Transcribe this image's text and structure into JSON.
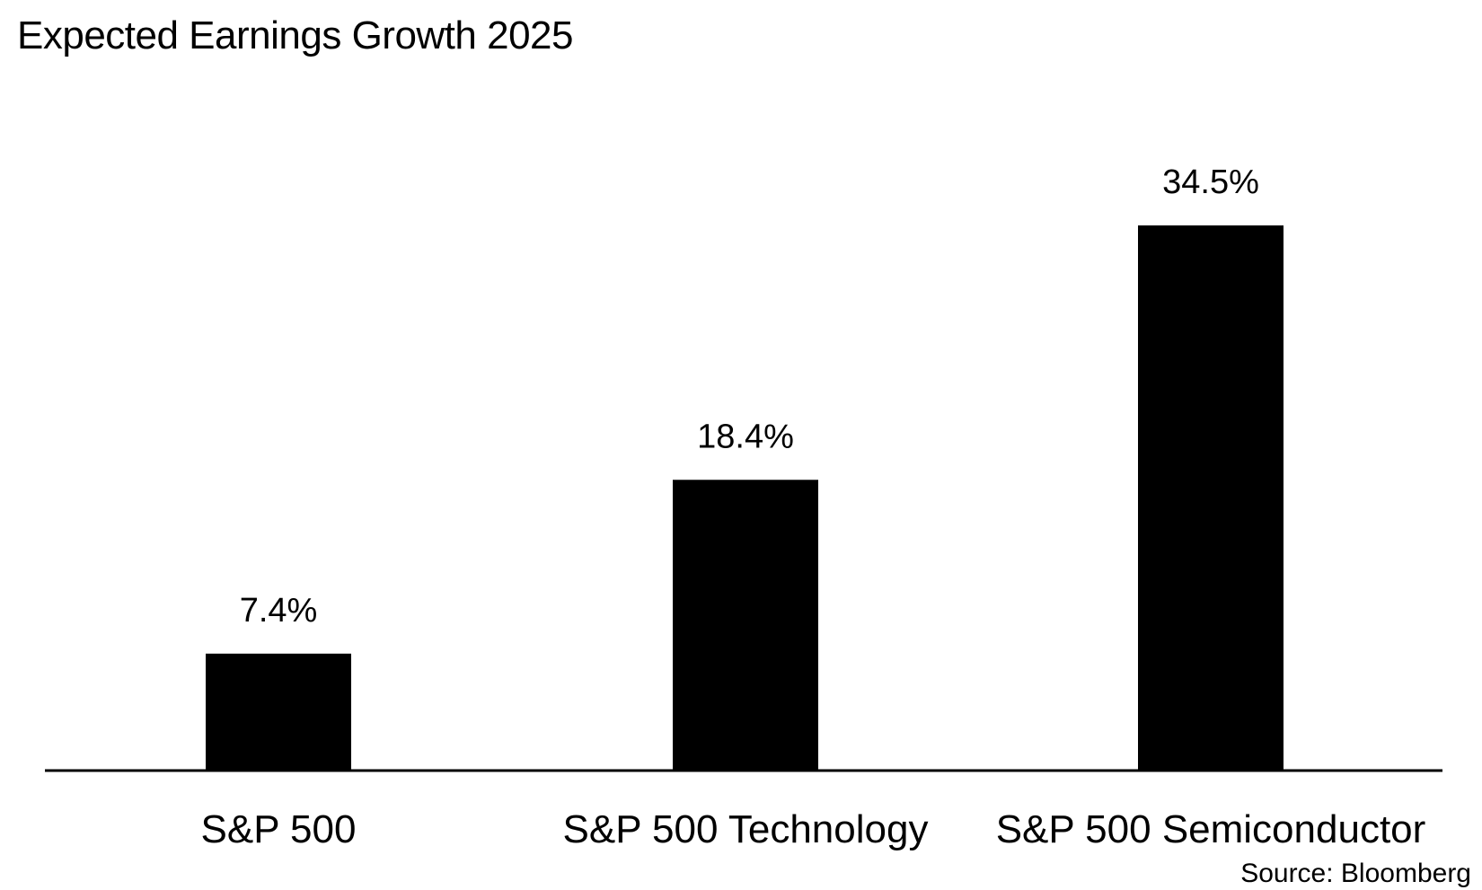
{
  "title": "Expected Earnings Growth 2025",
  "source": "Source: Bloomberg",
  "chart_data": {
    "type": "bar",
    "title": "Expected Earnings Growth 2025",
    "categories": [
      "S&P 500",
      "S&P 500 Technology",
      "S&P 500 Semiconductor"
    ],
    "values": [
      7.4,
      18.4,
      34.5
    ],
    "value_labels": [
      "7.4%",
      "18.4%",
      "34.5%"
    ],
    "xlabel": "",
    "ylabel": "",
    "ylim": [
      0,
      34.5
    ],
    "grid": false,
    "legend": "none",
    "bar_color": "#000000",
    "axis_color": "#000000"
  }
}
